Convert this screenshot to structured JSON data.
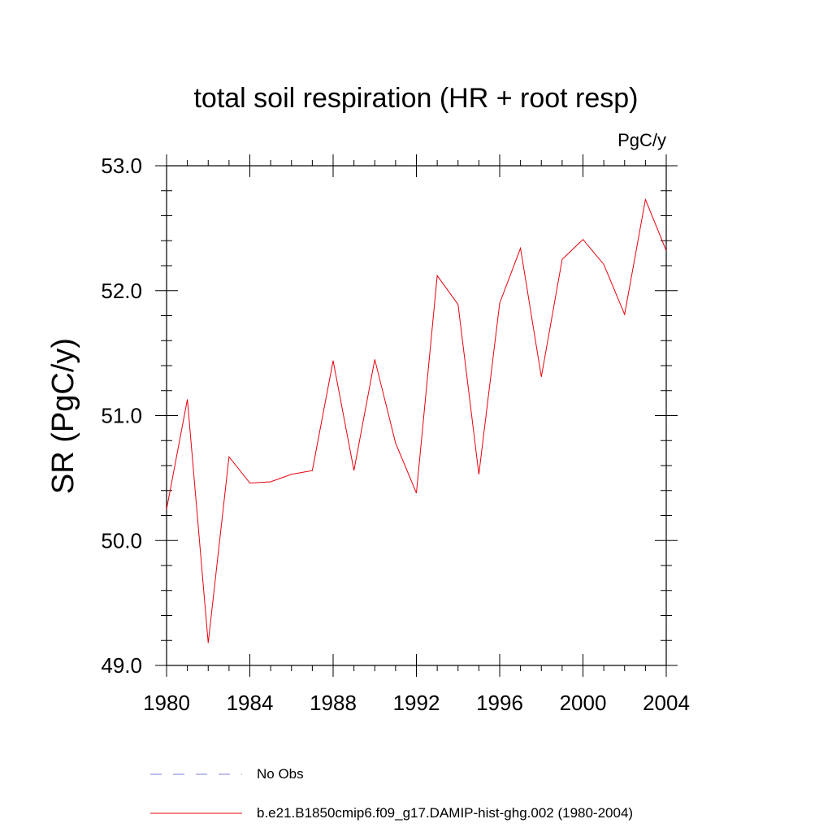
{
  "chart_data": {
    "type": "line",
    "title": "total soil respiration (HR + root resp)",
    "units_label": "PgC/y",
    "ylabel": "SR  (PgC/y)",
    "xlabel": "",
    "xlim": [
      1980,
      2004
    ],
    "ylim": [
      49.0,
      53.0
    ],
    "x_ticks": [
      1980,
      1984,
      1988,
      1992,
      1996,
      2000,
      2004
    ],
    "x_tick_labels": [
      "1980",
      "1984",
      "1988",
      "1992",
      "1996",
      "2000",
      "2004"
    ],
    "y_ticks": [
      49.0,
      50.0,
      51.0,
      52.0,
      53.0
    ],
    "y_tick_labels": [
      "49.0",
      "50.0",
      "51.0",
      "52.0",
      "53.0"
    ],
    "grid": false,
    "legend_position": "bottom",
    "series": [
      {
        "name": "No Obs",
        "color": "#7b7bd6",
        "style": "dashed",
        "x": [],
        "values": []
      },
      {
        "name": "b.e21.B1850cmip6.f09_g17.DAMIP-hist-ghg.002 (1980-2004)",
        "color": "#e8000b",
        "style": "solid",
        "x": [
          1980,
          1981,
          1982,
          1983,
          1984,
          1985,
          1986,
          1987,
          1988,
          1989,
          1990,
          1991,
          1992,
          1993,
          1994,
          1995,
          1996,
          1997,
          1998,
          1999,
          2000,
          2001,
          2002,
          2003,
          2004
        ],
        "values": [
          50.25,
          51.13,
          49.18,
          50.67,
          50.46,
          50.47,
          50.53,
          50.56,
          51.44,
          50.56,
          51.45,
          50.78,
          50.38,
          52.12,
          51.89,
          50.53,
          51.9,
          52.34,
          51.31,
          52.25,
          52.41,
          52.21,
          51.81,
          52.73,
          52.32
        ]
      }
    ]
  }
}
